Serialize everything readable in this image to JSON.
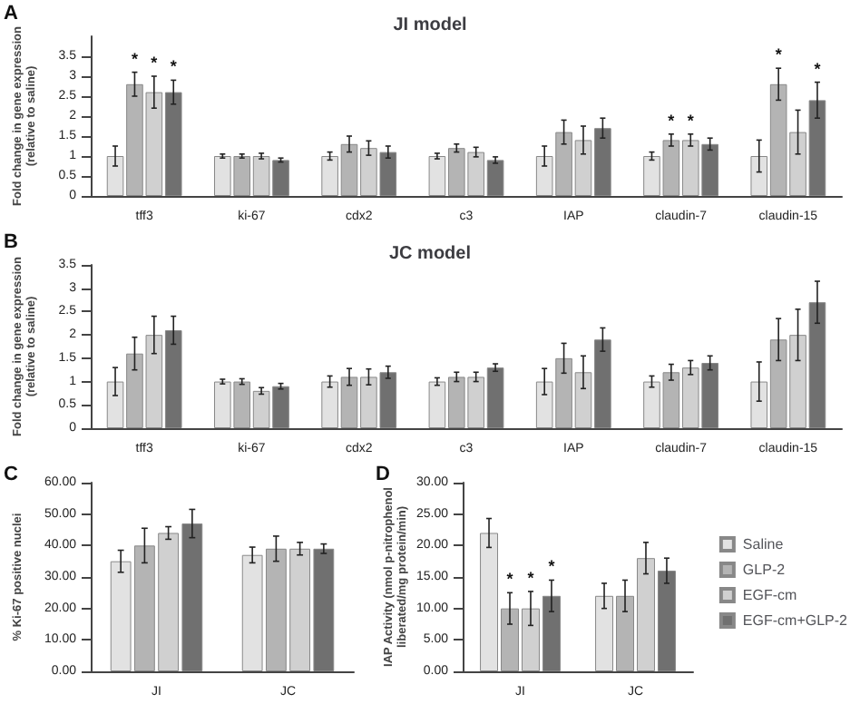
{
  "chart_data": [
    {
      "type": "bar",
      "title": "JI model",
      "annotations": [
        "A"
      ],
      "ylabel": "Fold change in gene expression (relative to saline)",
      "categories": [
        "tff3",
        "ki-67",
        "cdx2",
        "c3",
        "IAP",
        "claudin-7",
        "claudin-15"
      ],
      "ylim": [
        0,
        4
      ],
      "yticks": [
        0,
        0.5,
        1,
        1.5,
        2,
        2.5,
        3,
        3.5
      ],
      "legend": false,
      "series": [
        {
          "color": "#e2e2e2",
          "values": [
            1,
            1,
            1,
            1,
            1,
            1,
            1
          ],
          "errors": [
            0.25,
            0.05,
            0.1,
            0.07,
            0.25,
            0.1,
            0.4
          ]
        },
        {
          "color": "#b4b4b4",
          "values": [
            2.8,
            1.0,
            1.3,
            1.2,
            1.6,
            1.4,
            2.8
          ],
          "errors": [
            0.3,
            0.05,
            0.2,
            0.1,
            0.3,
            0.15,
            0.4
          ],
          "value_labels": [
            "*",
            null,
            null,
            null,
            null,
            "*",
            "*"
          ]
        },
        {
          "color": "#d0d0d0",
          "values": [
            2.6,
            1.0,
            1.2,
            1.1,
            1.4,
            1.4,
            1.6
          ],
          "errors": [
            0.4,
            0.07,
            0.18,
            0.12,
            0.35,
            0.15,
            0.55
          ],
          "value_labels": [
            "*",
            null,
            null,
            null,
            null,
            "*",
            null
          ]
        },
        {
          "color": "#707070",
          "values": [
            2.6,
            0.9,
            1.1,
            0.9,
            1.7,
            1.3,
            2.4
          ],
          "errors": [
            0.3,
            0.05,
            0.15,
            0.08,
            0.25,
            0.15,
            0.45
          ],
          "value_labels": [
            "*",
            null,
            null,
            null,
            null,
            null,
            "*"
          ]
        }
      ]
    },
    {
      "type": "bar",
      "title": "JC model",
      "annotations": [
        "B"
      ],
      "ylabel": "Fold change in gene expression (relative to saline)",
      "categories": [
        "tff3",
        "ki-67",
        "cdx2",
        "c3",
        "IAP",
        "claudin-7",
        "claudin-15"
      ],
      "ylim": [
        0,
        3.5
      ],
      "yticks": [
        0,
        0.5,
        1,
        1.5,
        2,
        2.5,
        3,
        3.5
      ],
      "legend": false,
      "series": [
        {
          "color": "#e2e2e2",
          "values": [
            1,
            1,
            1,
            1,
            1,
            1,
            1
          ],
          "errors": [
            0.3,
            0.05,
            0.12,
            0.08,
            0.28,
            0.12,
            0.42
          ]
        },
        {
          "color": "#b4b4b4",
          "values": [
            1.6,
            1.0,
            1.1,
            1.1,
            1.5,
            1.2,
            1.9
          ],
          "errors": [
            0.35,
            0.06,
            0.18,
            0.1,
            0.32,
            0.17,
            0.45
          ]
        },
        {
          "color": "#d0d0d0",
          "values": [
            2.0,
            0.8,
            1.1,
            1.1,
            1.2,
            1.3,
            2.0
          ],
          "errors": [
            0.4,
            0.07,
            0.17,
            0.1,
            0.35,
            0.15,
            0.55
          ]
        },
        {
          "color": "#707070",
          "values": [
            2.1,
            0.9,
            1.2,
            1.3,
            1.9,
            1.4,
            2.7
          ],
          "errors": [
            0.3,
            0.06,
            0.13,
            0.08,
            0.25,
            0.15,
            0.45
          ]
        }
      ]
    },
    {
      "type": "bar",
      "annotations": [
        "C"
      ],
      "ylabel": "% Ki-67 positive nuclei",
      "categories": [
        "JI",
        "JC"
      ],
      "ylim": [
        0,
        60
      ],
      "yticks": [
        {
          "value": 0,
          "label": "0.00"
        },
        {
          "value": 10,
          "label": "10.00"
        },
        {
          "value": 20,
          "label": "20.00"
        },
        {
          "value": 30,
          "label": "30.00"
        },
        {
          "value": 40,
          "label": "40.00"
        },
        {
          "value": 50,
          "label": "50.00"
        },
        {
          "value": 60,
          "label": "60.00"
        }
      ],
      "legend": false,
      "series": [
        {
          "color": "#e2e2e2",
          "values": [
            35,
            37
          ],
          "errors": [
            3.5,
            2.5
          ]
        },
        {
          "color": "#b4b4b4",
          "values": [
            40,
            39
          ],
          "errors": [
            5.5,
            4
          ]
        },
        {
          "color": "#d0d0d0",
          "values": [
            44,
            39
          ],
          "errors": [
            2,
            2
          ]
        },
        {
          "color": "#707070",
          "values": [
            47,
            39
          ],
          "errors": [
            4.5,
            1.5
          ]
        }
      ]
    },
    {
      "type": "bar",
      "annotations": [
        "D"
      ],
      "ylabel": "IAP Activity (nmol p-nitrophenol liberated/mg protein/min)",
      "categories": [
        "JI",
        "JC"
      ],
      "ylim": [
        0,
        30
      ],
      "yticks": [
        {
          "value": 0,
          "label": "0.00"
        },
        {
          "value": 5,
          "label": "5.00"
        },
        {
          "value": 10,
          "label": "10.00"
        },
        {
          "value": 15,
          "label": "15.00"
        },
        {
          "value": 20,
          "label": "20.00"
        },
        {
          "value": 25,
          "label": "25.00"
        },
        {
          "value": 30,
          "label": "30.00"
        }
      ],
      "legend": "right",
      "series": [
        {
          "name": "Saline",
          "color": "#e2e2e2",
          "values": [
            22,
            12
          ],
          "errors": [
            2.3,
            2
          ]
        },
        {
          "name": "GLP-2",
          "color": "#b4b4b4",
          "values": [
            10,
            12
          ],
          "errors": [
            2.5,
            2.5
          ],
          "value_labels": [
            "*",
            null
          ]
        },
        {
          "name": "EGF-cm",
          "color": "#d0d0d0",
          "values": [
            10,
            18
          ],
          "errors": [
            2.7,
            2.5
          ],
          "value_labels": [
            "*",
            null
          ]
        },
        {
          "name": "EGF-cm+GLP-2",
          "color": "#707070",
          "values": [
            12,
            16
          ],
          "errors": [
            2.5,
            2
          ],
          "value_labels": [
            "*",
            null
          ]
        }
      ]
    }
  ]
}
